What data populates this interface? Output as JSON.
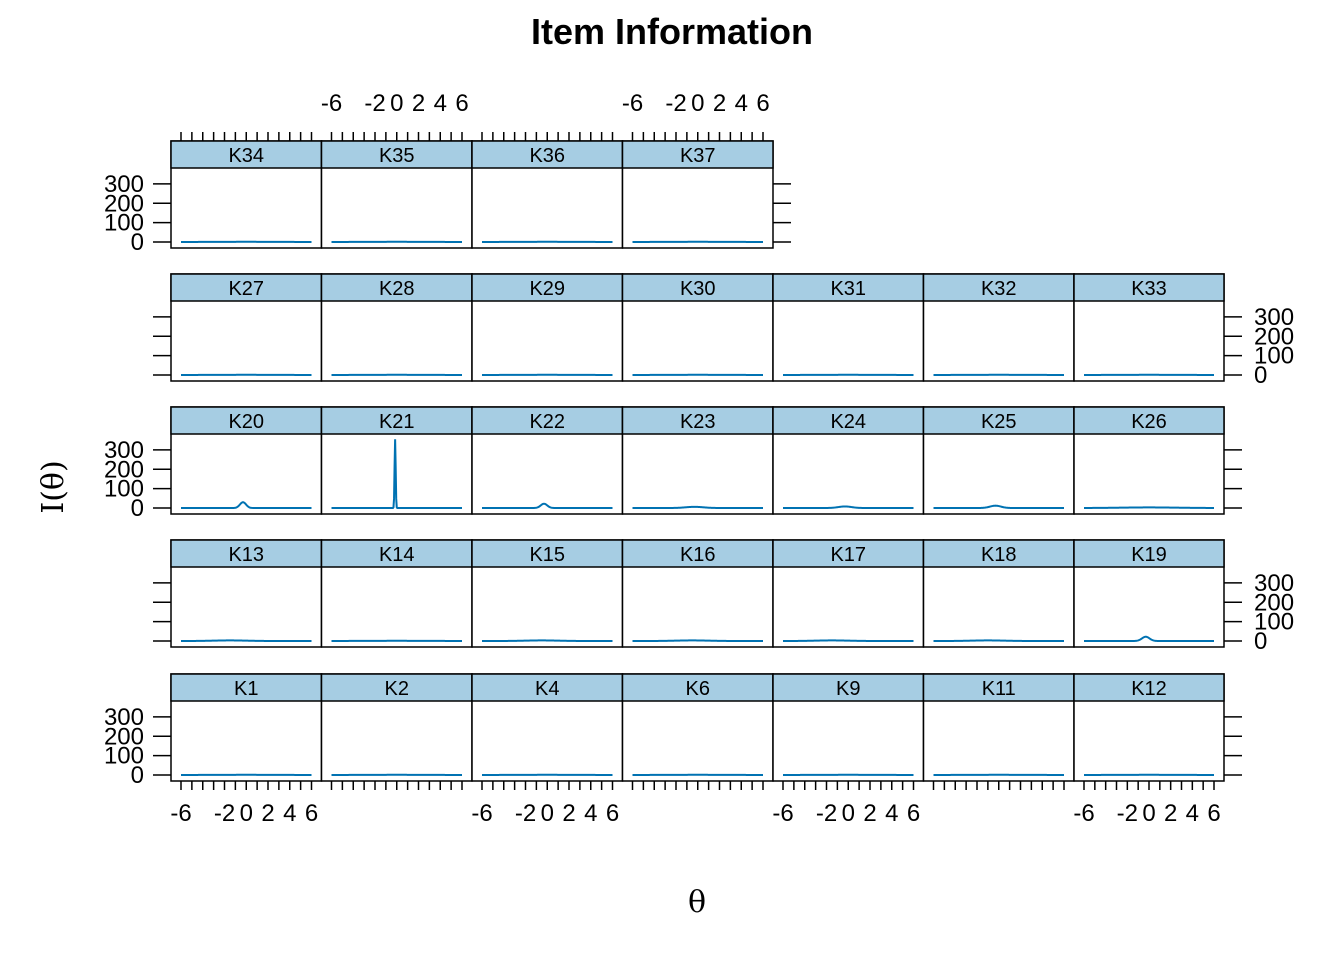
{
  "chart_data": {
    "type": "line",
    "title": "Item Information",
    "xlabel": "θ",
    "ylabel": "I(θ)",
    "xlim": [
      -6,
      6
    ],
    "ylim": [
      0,
      350
    ],
    "x_ticks": [
      -6,
      -4,
      -2,
      0,
      2,
      4,
      6
    ],
    "x_tick_labels": [
      "-6",
      "",
      "-2",
      "0",
      "2",
      "4",
      "6"
    ],
    "y_ticks": [
      0,
      100,
      200,
      300
    ],
    "y_tick_labels": [
      "0",
      "100",
      "200",
      "300"
    ],
    "colors": {
      "line": "#0072b2",
      "strip": "#a6cde3"
    },
    "layout": {
      "columns": 7,
      "rows": 5
    },
    "panel_order": [
      "K1",
      "K2",
      "K4",
      "K6",
      "K9",
      "K11",
      "K12",
      "K13",
      "K14",
      "K15",
      "K16",
      "K17",
      "K18",
      "K19",
      "K20",
      "K21",
      "K22",
      "K23",
      "K24",
      "K25",
      "K26",
      "K27",
      "K28",
      "K29",
      "K30",
      "K31",
      "K32",
      "K33",
      "K34",
      "K35",
      "K36",
      "K37"
    ],
    "series": [
      {
        "name": "K1",
        "peak_x": 0.0,
        "peak_y": 1,
        "width": 3.0
      },
      {
        "name": "K2",
        "peak_x": 0.0,
        "peak_y": 1,
        "width": 3.0
      },
      {
        "name": "K4",
        "peak_x": 0.0,
        "peak_y": 1,
        "width": 3.0
      },
      {
        "name": "K6",
        "peak_x": 0.0,
        "peak_y": 1,
        "width": 3.0
      },
      {
        "name": "K9",
        "peak_x": 0.0,
        "peak_y": 1,
        "width": 3.0
      },
      {
        "name": "K11",
        "peak_x": 0.0,
        "peak_y": 1,
        "width": 3.0
      },
      {
        "name": "K12",
        "peak_x": 0.0,
        "peak_y": 1,
        "width": 3.0
      },
      {
        "name": "K13",
        "peak_x": -1.5,
        "peak_y": 3,
        "width": 1.5
      },
      {
        "name": "K14",
        "peak_x": 0.0,
        "peak_y": 1,
        "width": 3.0
      },
      {
        "name": "K15",
        "peak_x": -0.5,
        "peak_y": 3,
        "width": 1.5
      },
      {
        "name": "K16",
        "peak_x": -0.5,
        "peak_y": 3,
        "width": 1.5
      },
      {
        "name": "K17",
        "peak_x": -1.5,
        "peak_y": 3,
        "width": 1.5
      },
      {
        "name": "K18",
        "peak_x": -1.0,
        "peak_y": 3,
        "width": 1.5
      },
      {
        "name": "K19",
        "peak_x": -0.3,
        "peak_y": 22,
        "width": 0.35
      },
      {
        "name": "K20",
        "peak_x": -0.3,
        "peak_y": 30,
        "width": 0.28
      },
      {
        "name": "K21",
        "peak_x": -0.15,
        "peak_y": 355,
        "width": 0.05
      },
      {
        "name": "K22",
        "peak_x": -0.3,
        "peak_y": 22,
        "width": 0.3
      },
      {
        "name": "K23",
        "peak_x": -0.3,
        "peak_y": 6,
        "width": 0.8
      },
      {
        "name": "K24",
        "peak_x": -0.3,
        "peak_y": 8,
        "width": 0.6
      },
      {
        "name": "K25",
        "peak_x": -0.3,
        "peak_y": 12,
        "width": 0.5
      },
      {
        "name": "K26",
        "peak_x": 0.0,
        "peak_y": 3,
        "width": 2.5
      },
      {
        "name": "K27",
        "peak_x": 0.0,
        "peak_y": 1,
        "width": 3.0
      },
      {
        "name": "K28",
        "peak_x": 0.0,
        "peak_y": 1,
        "width": 3.0
      },
      {
        "name": "K29",
        "peak_x": 0.0,
        "peak_y": 1,
        "width": 3.0
      },
      {
        "name": "K30",
        "peak_x": 0.0,
        "peak_y": 1,
        "width": 3.0
      },
      {
        "name": "K31",
        "peak_x": 0.0,
        "peak_y": 1,
        "width": 3.0
      },
      {
        "name": "K32",
        "peak_x": 0.0,
        "peak_y": 1,
        "width": 3.0
      },
      {
        "name": "K33",
        "peak_x": 0.0,
        "peak_y": 1,
        "width": 3.0
      },
      {
        "name": "K34",
        "peak_x": 0.0,
        "peak_y": 1,
        "width": 3.0
      },
      {
        "name": "K35",
        "peak_x": 0.0,
        "peak_y": 1,
        "width": 3.0
      },
      {
        "name": "K36",
        "peak_x": 0.0,
        "peak_y": 1,
        "width": 3.0
      },
      {
        "name": "K37",
        "peak_x": 0.0,
        "peak_y": 1,
        "width": 3.0
      }
    ]
  }
}
